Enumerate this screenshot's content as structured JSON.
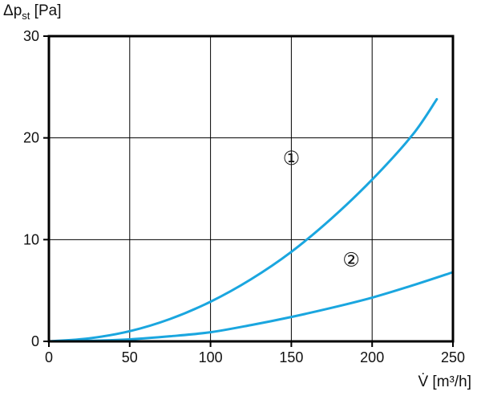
{
  "chart_data": {
    "type": "line",
    "xlabel": "V̇ [m³/h]",
    "ylabel_main": "Δp",
    "ylabel_sub": "st",
    "ylabel_unit": " [Pa]",
    "xlim": [
      0,
      250
    ],
    "ylim": [
      0,
      30
    ],
    "x_ticks": [
      0,
      50,
      100,
      150,
      200,
      250
    ],
    "y_ticks": [
      0,
      10,
      20,
      30
    ],
    "grid": true,
    "line_color": "#1aa6df",
    "series": [
      {
        "label": "①",
        "x": [
          0,
          25,
          50,
          75,
          100,
          125,
          150,
          175,
          200,
          225,
          240
        ],
        "y": [
          0.0,
          0.3,
          1.0,
          2.2,
          3.9,
          6.1,
          8.8,
          12.1,
          15.9,
          20.3,
          23.8
        ]
      },
      {
        "label": "②",
        "x": [
          0,
          25,
          50,
          75,
          100,
          125,
          150,
          175,
          200,
          225,
          250
        ],
        "y": [
          0.0,
          0.05,
          0.2,
          0.5,
          0.9,
          1.6,
          2.4,
          3.3,
          4.3,
          5.5,
          6.8
        ]
      }
    ]
  }
}
